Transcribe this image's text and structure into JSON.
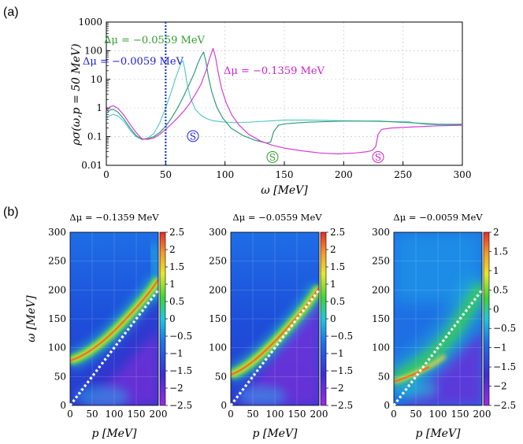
{
  "panels": {
    "a_label": "(a)",
    "b_label": "(b)"
  },
  "chart_data": [
    {
      "type": "line",
      "panel": "a",
      "xlabel": "ω [MeV]",
      "ylabel": "ρσ(ω,p = 50 MeV)",
      "xlim": [
        0,
        300
      ],
      "ylim": [
        0.01,
        1000
      ],
      "yscale": "log",
      "grid": true,
      "xticks": [
        "0",
        "50",
        "100",
        "150",
        "200",
        "250",
        "300"
      ],
      "yticks": [
        "0.01",
        "0.1",
        "1",
        "10",
        "100",
        "1000"
      ],
      "vline_x": 50,
      "series": [
        {
          "name": "Δμ = −0.0059 MeV",
          "color": "#5fc8c8",
          "x": [
            0,
            3,
            6,
            10,
            15,
            20,
            25,
            30,
            35,
            40,
            45,
            50,
            55,
            58,
            61,
            63,
            64.5,
            66,
            68,
            71,
            75,
            80,
            85,
            90,
            100,
            110,
            120,
            130,
            140,
            150,
            170,
            200,
            230,
            250,
            255,
            260,
            270,
            280,
            290,
            300
          ],
          "y": [
            0.42,
            0.55,
            0.6,
            0.52,
            0.33,
            0.17,
            0.1,
            0.08,
            0.09,
            0.13,
            0.3,
            1.0,
            4.0,
            10,
            22,
            38,
            45,
            25,
            7,
            2.2,
            0.9,
            0.55,
            0.42,
            0.36,
            0.32,
            0.31,
            0.32,
            0.34,
            0.36,
            0.38,
            0.38,
            0.36,
            0.34,
            0.33,
            0.33,
            0.3,
            0.27,
            0.26,
            0.25,
            0.25
          ]
        },
        {
          "name": "Δμ = −0.0559 MeV",
          "color": "#2e9e77",
          "x": [
            0,
            3,
            6,
            10,
            15,
            20,
            25,
            30,
            35,
            40,
            45,
            50,
            55,
            60,
            65,
            70,
            74,
            77,
            79.5,
            82,
            84,
            86,
            89,
            93,
            98,
            105,
            115,
            125,
            135,
            138.5,
            141,
            145,
            150,
            170,
            200,
            230,
            260,
            280,
            300
          ],
          "y": [
            0.65,
            0.85,
            0.9,
            0.7,
            0.4,
            0.2,
            0.11,
            0.08,
            0.085,
            0.1,
            0.14,
            0.23,
            0.45,
            1.0,
            2.5,
            7,
            16,
            35,
            60,
            90,
            40,
            12,
            3.5,
            1.1,
            0.45,
            0.2,
            0.11,
            0.075,
            0.06,
            0.065,
            0.15,
            0.25,
            0.28,
            0.32,
            0.35,
            0.35,
            0.3,
            0.27,
            0.27
          ]
        },
        {
          "name": "Δμ = −0.1359 MeV",
          "color": "#d43fd4",
          "x": [
            0,
            3,
            6,
            10,
            15,
            20,
            25,
            30,
            35,
            40,
            45,
            50,
            55,
            60,
            65,
            70,
            75,
            80,
            84,
            87,
            90,
            92,
            94,
            97,
            101,
            106,
            112,
            120,
            130,
            140,
            150,
            165,
            180,
            195,
            210,
            220,
            224,
            227,
            229,
            232,
            240,
            260,
            280,
            300
          ],
          "y": [
            0.75,
            1.1,
            1.2,
            0.95,
            0.55,
            0.27,
            0.14,
            0.085,
            0.08,
            0.09,
            0.12,
            0.18,
            0.28,
            0.45,
            0.75,
            1.4,
            3,
            7,
            20,
            55,
            120,
            60,
            20,
            5,
            1.5,
            0.55,
            0.25,
            0.12,
            0.07,
            0.05,
            0.04,
            0.032,
            0.027,
            0.025,
            0.027,
            0.03,
            0.033,
            0.045,
            0.12,
            0.18,
            0.2,
            0.22,
            0.24,
            0.25
          ]
        }
      ],
      "annotations": [
        {
          "text": "Δμ = −0.0559 MeV",
          "color": "#2e9e2e"
        },
        {
          "text": "Δμ = −0.0059 MeV",
          "color": "#2020d8"
        },
        {
          "text": "Δμ = −0.1359 MeV",
          "color": "#d020d0"
        }
      ],
      "markers": [
        {
          "text": "S",
          "color": "#2020d8",
          "x": 73,
          "y": 0.105
        },
        {
          "text": "S",
          "color": "#2e9e2e",
          "x": 140,
          "y": 0.0195
        },
        {
          "text": "S",
          "color": "#d020d0",
          "x": 229,
          "y": 0.0195
        }
      ]
    },
    {
      "type": "heatmap",
      "panel": "b1",
      "title": "Δμ = −0.1359 MeV",
      "xlabel": "p [MeV]",
      "ylabel": "ω [MeV]",
      "xlim": [
        0,
        200
      ],
      "ylim": [
        0,
        300
      ],
      "xticks": [
        "0",
        "50",
        "100",
        "150",
        "200"
      ],
      "yticks": [
        "0",
        "50",
        "100",
        "150",
        "200",
        "250",
        "300"
      ],
      "colorbar": {
        "min": -2.5,
        "max": 2.5,
        "ticks": [
          "2.5",
          "2",
          "1.5",
          "1",
          "0.5",
          "0",
          "-0.5",
          "-1",
          "-1.5",
          "-2",
          "-2.5"
        ]
      },
      "ridge_omega0": 75,
      "diagonal": "ω = p"
    },
    {
      "type": "heatmap",
      "panel": "b2",
      "title": "Δμ = −0.0559 MeV",
      "xlabel": "p [MeV]",
      "xlim": [
        0,
        200
      ],
      "ylim": [
        0,
        300
      ],
      "xticks": [
        "0",
        "50",
        "100",
        "150",
        "200"
      ],
      "colorbar": {
        "min": -2.5,
        "max": 2.5,
        "ticks": [
          "2.5",
          "2",
          "1.5",
          "1",
          "0.5",
          "0",
          "-0.5",
          "-1",
          "-1.5",
          "-2",
          "-2.5"
        ]
      },
      "ridge_omega0": 65,
      "diagonal": "ω = p"
    },
    {
      "type": "heatmap",
      "panel": "b3",
      "title": "Δμ = −0.0059 MeV",
      "xlabel": "p [MeV]",
      "xlim": [
        0,
        200
      ],
      "ylim": [
        0,
        300
      ],
      "xticks": [
        "0",
        "50",
        "100",
        "150",
        "200"
      ],
      "yticks": [
        "0",
        "50",
        "100",
        "150",
        "200",
        "250",
        "300"
      ],
      "colorbar": {
        "min": -2.5,
        "max": 2.0,
        "ticks": [
          "2",
          "1.5",
          "1",
          "0.5",
          "0",
          "-0.5",
          "-1",
          "-1.5",
          "-2",
          "-2.5"
        ]
      },
      "ridge_omega0": 45,
      "diagonal": "ω = p"
    }
  ]
}
